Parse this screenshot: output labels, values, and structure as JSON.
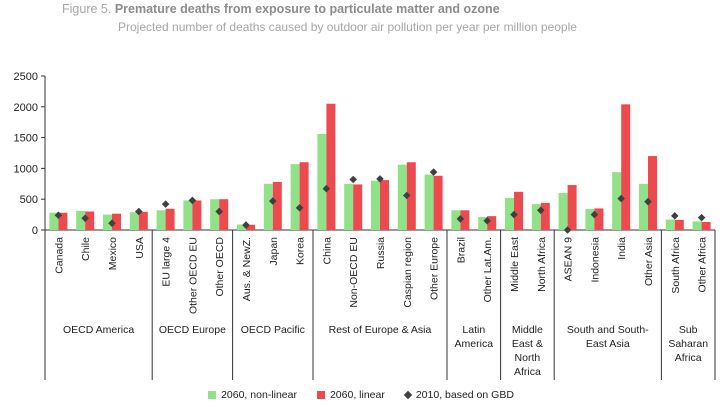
{
  "figure": {
    "prefix": "Figure 5.",
    "title": "Premature deaths from exposure to particulate matter and ozone",
    "subtitle": "Projected number of deaths caused by outdoor air pollution per year per million people"
  },
  "colors": {
    "nonlinear": "#90e187",
    "linear": "#ec4a4e",
    "gbd": "#404040"
  },
  "chart_data": {
    "type": "bar",
    "ylim": [
      0,
      2500
    ],
    "yticks": [
      0,
      500,
      1000,
      1500,
      2000,
      2500
    ],
    "categories": [
      "Canada",
      "Chile",
      "Mexico",
      "USA",
      "EU large 4",
      "Other OECD EU",
      "Other OECD",
      "Aus. & NewZ.",
      "Japan",
      "Korea",
      "China",
      "Non-OECD EU",
      "Russia",
      "Caspian region",
      "Other Europe",
      "Brazil",
      "Other Lat.Am.",
      "Middle East",
      "North Africa",
      "ASEAN 9",
      "Indonesia",
      "India",
      "Other Asia",
      "South Africa",
      "Other Africa"
    ],
    "groups": [
      {
        "label": [
          "OECD America"
        ],
        "start": 0,
        "end": 3
      },
      {
        "label": [
          "OECD Europe"
        ],
        "start": 4,
        "end": 6
      },
      {
        "label": [
          "OECD Pacific"
        ],
        "start": 7,
        "end": 9
      },
      {
        "label": [
          "Rest of Europe & Asia"
        ],
        "start": 10,
        "end": 14
      },
      {
        "label": [
          "Latin",
          "America"
        ],
        "start": 15,
        "end": 16
      },
      {
        "label": [
          "Middle",
          "East &",
          "North",
          "Africa"
        ],
        "start": 17,
        "end": 18
      },
      {
        "label": [
          "South and South-",
          "East Asia"
        ],
        "start": 19,
        "end": 22
      },
      {
        "label": [
          "Sub",
          "Saharan",
          "Africa"
        ],
        "start": 23,
        "end": 24
      }
    ],
    "series": [
      {
        "name": "2060, non-linear",
        "kind": "bar",
        "values": [
          280,
          310,
          250,
          290,
          320,
          480,
          500,
          90,
          750,
          1070,
          1560,
          750,
          800,
          1060,
          900,
          320,
          210,
          520,
          420,
          600,
          340,
          940,
          750,
          170,
          140
        ]
      },
      {
        "name": "2060, linear",
        "kind": "bar",
        "values": [
          280,
          300,
          265,
          295,
          345,
          480,
          500,
          85,
          780,
          1100,
          2050,
          740,
          810,
          1100,
          880,
          320,
          225,
          620,
          440,
          730,
          350,
          2040,
          1200,
          165,
          130
        ]
      },
      {
        "name": "2010, based on GBD",
        "kind": "marker",
        "values": [
          240,
          190,
          110,
          300,
          420,
          480,
          300,
          80,
          470,
          360,
          670,
          820,
          830,
          560,
          940,
          180,
          150,
          250,
          320,
          0,
          250,
          510,
          460,
          230,
          200
        ]
      }
    ]
  }
}
